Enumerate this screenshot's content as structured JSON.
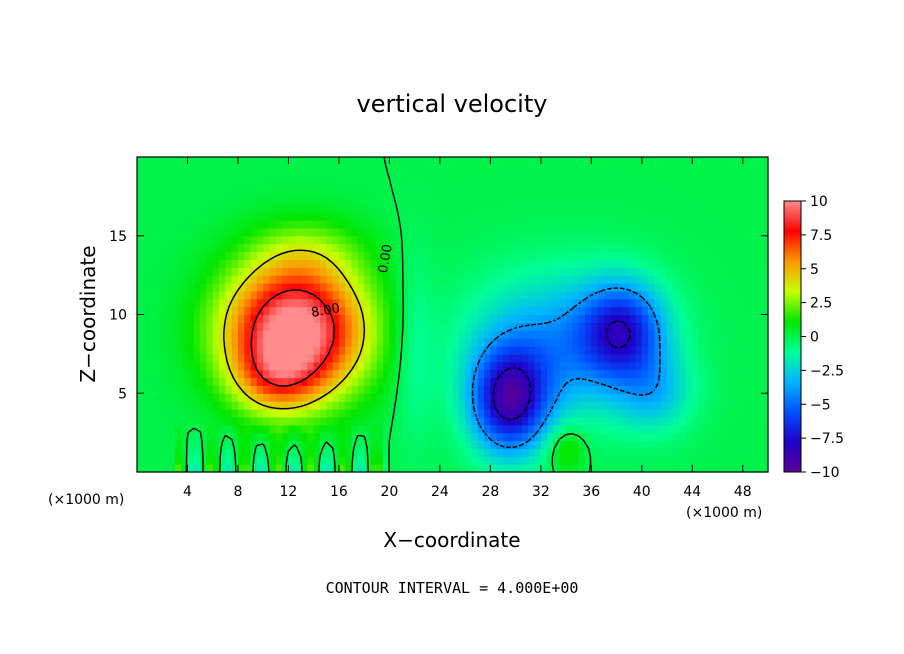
{
  "chart_data": {
    "type": "heatmap",
    "title": "vertical velocity",
    "xlabel": "X−coordinate",
    "ylabel": "Z−coordinate",
    "x_unit_left": "(×1000 m)",
    "x_unit_right": "(×1000 m)",
    "xlim": [
      0,
      50
    ],
    "ylim": [
      0,
      20
    ],
    "x_ticks": [
      4,
      8,
      12,
      16,
      20,
      24,
      28,
      32,
      36,
      40,
      44,
      48
    ],
    "y_ticks": [
      5,
      10,
      15
    ],
    "footer": "CONTOUR INTERVAL = 4.000E+00",
    "contour_labels": [
      {
        "text": "0.00",
        "x": 20,
        "z": 13.5,
        "angle": -80
      },
      {
        "text": "8.00",
        "x": 15,
        "z": 10,
        "angle": -10
      }
    ],
    "colorbar": {
      "range": [
        -10,
        10
      ],
      "tick_values": [
        10,
        7.5,
        5,
        2.5,
        0,
        -2.5,
        -5,
        -7.5,
        -10
      ],
      "tick_labels": [
        "10",
        "7.5",
        "5",
        "2.5",
        "0",
        "−2.5",
        "−5",
        "−7.5",
        "−10"
      ],
      "stops": [
        "#5a0096",
        "#1e00c8",
        "#0050ff",
        "#00b4ff",
        "#00ff96",
        "#00e600",
        "#c8ff00",
        "#ff9600",
        "#ff0000",
        "#ff8c8c"
      ]
    },
    "features": [
      {
        "kind": "updraft",
        "x": 12.5,
        "z": 9,
        "sx": 5.5,
        "sz": 4.2,
        "w": 11
      },
      {
        "kind": "updraft",
        "x": 11,
        "z": 6,
        "sx": 3.2,
        "sz": 2.3,
        "w": 3
      },
      {
        "kind": "updraft",
        "x": 13.5,
        "z": 14,
        "sx": 4.5,
        "sz": 2.2,
        "w": 1.5
      },
      {
        "kind": "downdraft",
        "x": 29.5,
        "z": 4.5,
        "sx": 3,
        "sz": 3.3,
        "w": -8
      },
      {
        "kind": "downdraft",
        "x": 38.5,
        "z": 9,
        "sx": 3.2,
        "sz": 3,
        "w": -6
      },
      {
        "kind": "downdraft",
        "x": 33.5,
        "z": 8,
        "sx": 7,
        "sz": 4.5,
        "w": -4
      },
      {
        "kind": "downdraft",
        "x": 41,
        "z": 5,
        "sx": 3,
        "sz": 2.5,
        "w": -2.5
      },
      {
        "kind": "downdraft",
        "x": 22,
        "z": 8,
        "sx": 1.6,
        "sz": 6,
        "w": -1.2
      },
      {
        "kind": "updraft",
        "x": 34,
        "z": 1.5,
        "sx": 1.5,
        "sz": 1.5,
        "w": 2
      }
    ]
  }
}
